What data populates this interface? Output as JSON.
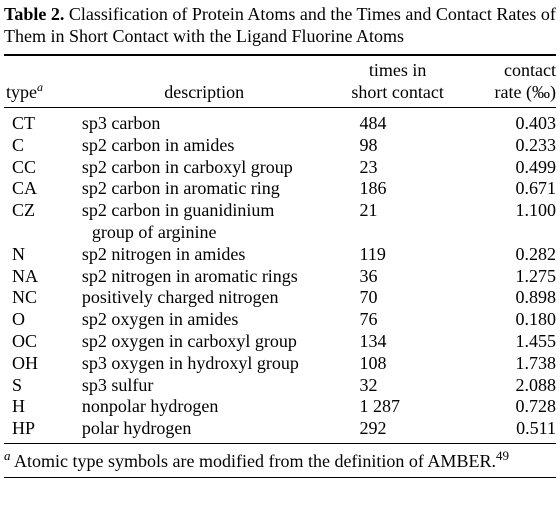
{
  "caption": {
    "label": "Table 2.",
    "text": "Classification of Protein Atoms and the Times and Contact Rates of Them in Short Contact with the Ligand Fluorine Atoms"
  },
  "headers": {
    "type": "type",
    "type_note": "a",
    "description": "description",
    "times_line1": "times in",
    "times_line2": "short contact",
    "rate_line1": "contact",
    "rate_line2": "rate (‰)"
  },
  "rows": [
    {
      "type": "CT",
      "desc": "sp3 carbon",
      "desc2": "",
      "times": "484",
      "rate": "0.403"
    },
    {
      "type": "C",
      "desc": "sp2 carbon in amides",
      "desc2": "",
      "times": "98",
      "rate": "0.233"
    },
    {
      "type": "CC",
      "desc": "sp2 carbon in carboxyl group",
      "desc2": "",
      "times": "23",
      "rate": "0.499"
    },
    {
      "type": "CA",
      "desc": "sp2 carbon in aromatic ring",
      "desc2": "",
      "times": "186",
      "rate": "0.671"
    },
    {
      "type": "CZ",
      "desc": "sp2 carbon in guanidinium",
      "desc2": "group of arginine",
      "times": "21",
      "rate": "1.100"
    },
    {
      "type": "N",
      "desc": "sp2 nitrogen in amides",
      "desc2": "",
      "times": "119",
      "rate": "0.282"
    },
    {
      "type": "NA",
      "desc": "sp2 nitrogen in aromatic rings",
      "desc2": "",
      "times": "36",
      "rate": "1.275"
    },
    {
      "type": "NC",
      "desc": "positively charged nitrogen",
      "desc2": "",
      "times": "70",
      "rate": "0.898"
    },
    {
      "type": "O",
      "desc": "sp2 oxygen in amides",
      "desc2": "",
      "times": "76",
      "rate": "0.180"
    },
    {
      "type": "OC",
      "desc": "sp2 oxygen in carboxyl group",
      "desc2": "",
      "times": "134",
      "rate": "1.455"
    },
    {
      "type": "OH",
      "desc": "sp3 oxygen in hydroxyl group",
      "desc2": "",
      "times": "108",
      "rate": "1.738"
    },
    {
      "type": "S",
      "desc": "sp3 sulfur",
      "desc2": "",
      "times": "32",
      "rate": "2.088"
    },
    {
      "type": "H",
      "desc": "nonpolar hydrogen",
      "desc2": "",
      "times": "1 287",
      "rate": "0.728"
    },
    {
      "type": "HP",
      "desc": "polar hydrogen",
      "desc2": "",
      "times": "292",
      "rate": "0.511"
    }
  ],
  "footnote": {
    "mark": "a",
    "text": "Atomic type symbols are modified from the definition of AMBER.",
    "ref": "49"
  }
}
